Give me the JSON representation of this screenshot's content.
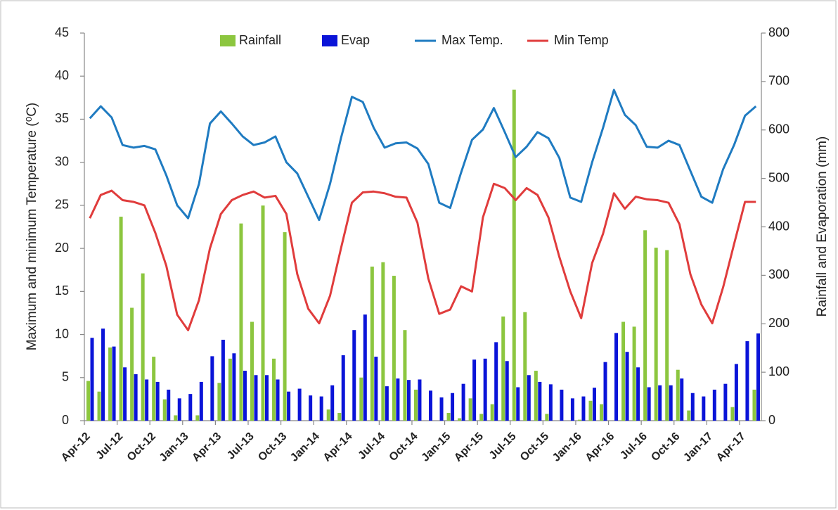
{
  "chart_data": {
    "type": "bar",
    "y_label": "Maximum and minimum Temperature (⁰C)",
    "y2_label": "Rainfall and Evaporation (mm)",
    "categories": [
      "Apr-12",
      null,
      null,
      "Jul-12",
      null,
      null,
      "Oct-12",
      null,
      null,
      "Jan-13",
      null,
      null,
      "Apr-13",
      null,
      null,
      "Jul-13",
      null,
      null,
      "Oct-13",
      null,
      null,
      "Jan-14",
      null,
      null,
      "Apr-14",
      null,
      null,
      "Jul-14",
      null,
      null,
      "Oct-14",
      null,
      null,
      "Jan-15",
      null,
      null,
      "Apr-15",
      null,
      null,
      "Jul-15",
      null,
      null,
      "Oct-15",
      null,
      null,
      "Jan-16",
      null,
      null,
      "Apr-16",
      null,
      null,
      "Jul-16",
      null,
      null,
      "Oct-16",
      null,
      null,
      "Jan-17",
      null,
      null,
      "Apr-17",
      null
    ],
    "ylim": [
      0,
      45
    ],
    "yticks": [
      0,
      5,
      10,
      15,
      20,
      25,
      30,
      35,
      40,
      45
    ],
    "y2lim": [
      0,
      800
    ],
    "y2ticks": [
      0,
      100,
      200,
      300,
      400,
      500,
      600,
      700,
      800
    ],
    "series": [
      {
        "name": "Rainfall",
        "type": "bar",
        "axis": "y2",
        "color": "#8cc63f",
        "values": [
          82,
          60,
          151,
          421,
          233,
          304,
          132,
          44,
          11,
          0,
          11,
          0,
          78,
          128,
          407,
          204,
          444,
          128,
          389,
          0,
          0,
          0,
          23,
          16,
          0,
          89,
          318,
          327,
          299,
          187,
          64,
          0,
          0,
          16,
          5,
          46,
          14,
          34,
          215,
          683,
          224,
          103,
          14,
          0,
          0,
          2,
          41,
          34,
          0,
          204,
          194,
          393,
          357,
          352,
          105,
          21,
          0,
          0,
          0,
          28,
          0,
          64
        ]
      },
      {
        "name": "Evap",
        "type": "bar",
        "axis": "y2",
        "color": "#0a14d8",
        "values": [
          171,
          190,
          153,
          110,
          96,
          85,
          80,
          64,
          46,
          55,
          80,
          133,
          167,
          139,
          103,
          94,
          94,
          85,
          60,
          66,
          52,
          50,
          73,
          135,
          187,
          219,
          132,
          71,
          87,
          84,
          85,
          62,
          48,
          57,
          76,
          126,
          128,
          162,
          123,
          69,
          94,
          80,
          75,
          64,
          46,
          50,
          68,
          121,
          181,
          142,
          110,
          69,
          73,
          73,
          87,
          57,
          50,
          64,
          76,
          117,
          164,
          180
        ]
      },
      {
        "name": "Max Temp.",
        "type": "line",
        "color": "#1f7bc1",
        "values": [
          35.1,
          36.5,
          35.2,
          32.0,
          31.7,
          31.9,
          31.5,
          28.5,
          25.0,
          23.5,
          27.5,
          34.5,
          35.9,
          34.5,
          33.0,
          32.0,
          32.3,
          33.0,
          30.0,
          28.7,
          26.0,
          23.3,
          27.5,
          32.8,
          37.6,
          37.0,
          34.0,
          31.7,
          32.2,
          32.3,
          31.6,
          29.8,
          25.3,
          24.7,
          28.8,
          32.6,
          33.8,
          36.3,
          33.5,
          30.6,
          31.8,
          33.5,
          32.8,
          30.5,
          25.9,
          25.4,
          30.0,
          34.0,
          38.4,
          35.5,
          34.3,
          31.8,
          31.7,
          32.5,
          32.0,
          29.0,
          26.0,
          25.3,
          29.2,
          32.0,
          35.4,
          36.5
        ]
      },
      {
        "name": "Min Temp",
        "type": "line",
        "color": "#e03c3c",
        "values": [
          23.5,
          26.2,
          26.7,
          25.6,
          25.4,
          25.0,
          21.8,
          18.0,
          12.3,
          10.5,
          14.0,
          20.0,
          24.0,
          25.6,
          26.2,
          26.6,
          25.9,
          26.1,
          24.0,
          17.0,
          13.0,
          11.3,
          14.5,
          20.0,
          25.3,
          26.5,
          26.6,
          26.4,
          26.0,
          25.9,
          23.0,
          16.5,
          12.4,
          12.9,
          15.6,
          15.0,
          23.6,
          27.5,
          27.0,
          25.6,
          27.0,
          26.2,
          23.6,
          19.0,
          15.0,
          11.9,
          18.3,
          21.7,
          26.4,
          24.6,
          26.0,
          25.7,
          25.6,
          25.3,
          22.8,
          17.0,
          13.5,
          11.3,
          15.5,
          20.5,
          25.4,
          25.4
        ]
      }
    ],
    "legend": "top"
  }
}
